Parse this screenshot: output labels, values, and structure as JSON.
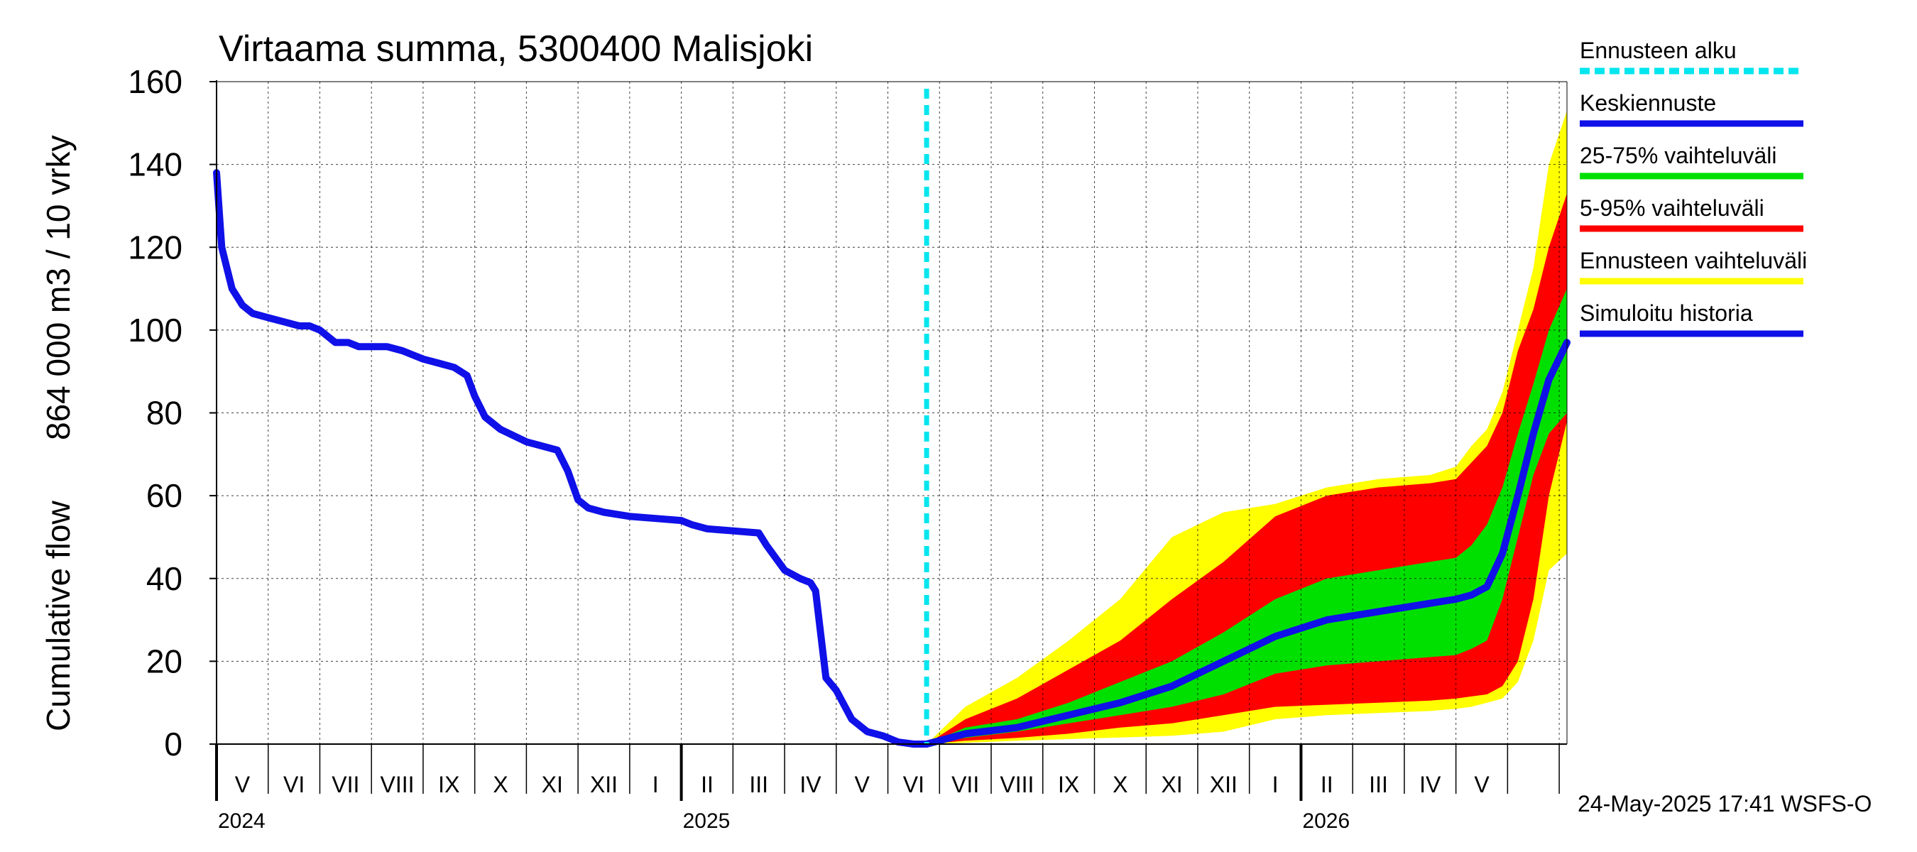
{
  "chart_data": {
    "type": "area",
    "title": "Virtaama summa, 5300400 Malisjoki",
    "ylabel_line1": "Cumulative flow",
    "ylabel_line2": "864 000 m3 / 10 vrky",
    "ylim": [
      0,
      160
    ],
    "yticks": [
      0,
      20,
      40,
      60,
      80,
      100,
      120,
      140,
      160
    ],
    "x_unit": "months since 2024-04-01",
    "xlim": [
      0,
      26.15
    ],
    "forecast_start": 13.75,
    "months": [
      "V",
      "VI",
      "VII",
      "VIII",
      "IX",
      "X",
      "XI",
      "XII",
      "I",
      "II",
      "III",
      "IV",
      "V",
      "VI",
      "VII",
      "VIII",
      "IX",
      "X",
      "XI",
      "XII",
      "I",
      "II",
      "III",
      "IV",
      "V"
    ],
    "month_offset": 1,
    "years": [
      {
        "label": "2024",
        "at": 0
      },
      {
        "label": "2025",
        "at": 9
      },
      {
        "label": "2026",
        "at": 21
      }
    ],
    "colors": {
      "forecast_start": "#00e5ee",
      "mean": "#1010e8",
      "band_25_75": "#00e000",
      "band_5_95": "#ff0000",
      "band_range": "#ffff00",
      "history": "#1010e8"
    },
    "legend": [
      {
        "label": "Ennusteen alku",
        "color": "#00e5ee",
        "style": "dashed"
      },
      {
        "label": "Keskiennuste",
        "color": "#1010e8",
        "style": "solid"
      },
      {
        "label": "25-75% vaihteluväli",
        "color": "#00e000",
        "style": "solid"
      },
      {
        "label": "5-95% vaihteluväli",
        "color": "#ff0000",
        "style": "solid"
      },
      {
        "label": "Ennusteen vaihteluväli",
        "color": "#ffff00",
        "style": "solid"
      },
      {
        "label": "Simuloitu historia",
        "color": "#1010e8",
        "style": "solid"
      }
    ],
    "history": {
      "x": [
        0,
        0.1,
        0.3,
        0.5,
        0.7,
        1.0,
        1.3,
        1.6,
        1.8,
        2.0,
        2.3,
        2.55,
        2.75,
        3.0,
        3.3,
        3.6,
        3.8,
        4.0,
        4.3,
        4.6,
        4.85,
        5.0,
        5.2,
        5.3,
        5.5,
        6.0,
        6.6,
        6.8,
        7.0,
        7.2,
        7.5,
        8.0,
        8.5,
        9.0,
        9.2,
        9.5,
        10.0,
        10.5,
        10.65,
        11.0,
        11.3,
        11.5,
        11.6,
        11.8,
        12.0,
        12.3,
        12.6,
        12.9,
        13.2,
        13.5,
        13.75
      ],
      "y": [
        138,
        120,
        110,
        106,
        104,
        103,
        102,
        101,
        101,
        100,
        97,
        97,
        96,
        96,
        96,
        95,
        94,
        93,
        92,
        91,
        89,
        84,
        79,
        78,
        76,
        73,
        71,
        66,
        59,
        57,
        56,
        55,
        54.5,
        54,
        53,
        52,
        51.5,
        51,
        48,
        42,
        40,
        39,
        37,
        16,
        13,
        6,
        3,
        2,
        0.5,
        0,
        0
      ]
    },
    "forecast": {
      "x": [
        13.75,
        14.5,
        15.5,
        16.5,
        17.5,
        18.5,
        19.5,
        20.5,
        21.5,
        22.5,
        23.5,
        24.0,
        24.3,
        24.6,
        24.9,
        25.2,
        25.5,
        25.8,
        26.15
      ],
      "min": [
        0,
        0.3,
        0.8,
        1.2,
        1.6,
        2,
        3,
        6,
        7,
        7.5,
        8,
        8.5,
        9,
        10,
        11,
        15,
        25,
        42,
        46
      ],
      "p5": [
        0,
        0.8,
        1.5,
        2.5,
        4,
        5,
        7,
        9,
        9.5,
        10,
        10.5,
        11,
        11.5,
        12,
        14,
        20,
        35,
        60,
        78
      ],
      "p25": [
        0,
        1.5,
        3,
        5,
        7,
        9,
        12,
        17,
        19,
        20,
        21,
        21.5,
        23,
        25,
        35,
        50,
        65,
        75,
        80
      ],
      "mean": [
        0,
        2.5,
        4,
        7,
        10,
        14,
        20,
        26,
        30,
        32,
        34,
        35,
        36,
        38,
        46,
        60,
        75,
        88,
        97
      ],
      "p75": [
        0,
        4,
        6,
        10,
        15,
        20,
        27,
        35,
        40,
        42,
        44,
        45,
        48,
        53,
        62,
        75,
        87,
        100,
        110
      ],
      "p95": [
        0,
        6,
        11,
        18,
        25,
        35,
        44,
        55,
        60,
        62,
        63,
        64,
        68,
        72,
        80,
        95,
        105,
        120,
        133
      ],
      "max": [
        0,
        9,
        16,
        25,
        35,
        50,
        56,
        58,
        62,
        64,
        65,
        67,
        72,
        76,
        85,
        100,
        115,
        140,
        153
      ]
    },
    "timestamp": "24-May-2025 17:41 WSFS-O"
  }
}
